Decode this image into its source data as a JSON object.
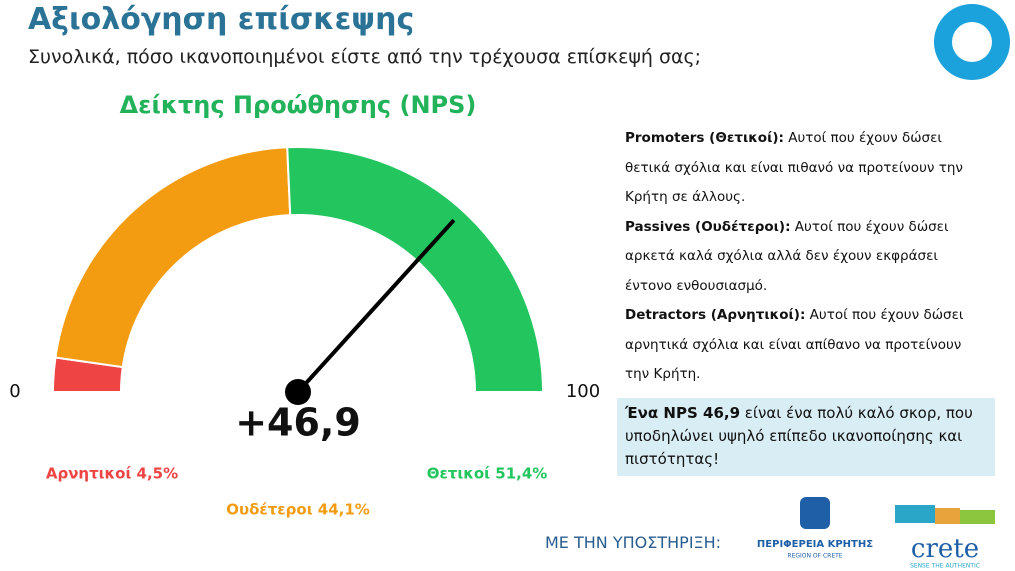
{
  "header": {
    "title": "Αξιολόγηση επίσκεψης",
    "subtitle": "Συνολικά, πόσο ικανοποιημένοι είστε από την τρέχουσα επίσκεψή σας;"
  },
  "chart_data": {
    "type": "gauge",
    "title": "Δείκτης Προώθησης (NPS)",
    "values": [
      4.5,
      44.1,
      51.4
    ],
    "value_labels": [
      "Αρνητικοί 4,5%",
      "Ουδέτεροι 44,1%",
      "Θετικοί 51,4%"
    ],
    "colors": [
      "#ef4444",
      "#f39c12",
      "#22c55e"
    ],
    "xlim": [
      0,
      100
    ],
    "xticks": [
      0,
      100
    ],
    "needle": {
      "value": 46.9,
      "label": "+46,9",
      "range": [
        -100,
        100
      ]
    }
  },
  "definitions": [
    {
      "term": "Promoters (Θετικοί):",
      "text": "Αυτοί που έχουν δώσει θετικά σχόλια και είναι πιθανό να προτείνουν την Κρήτη σε άλλους."
    },
    {
      "term": "Passives (Ουδέτεροι):",
      "text": "Αυτοί που έχουν δώσει αρκετά καλά σχόλια αλλά δεν έχουν εκφράσει έντονο ενθουσιασμό."
    },
    {
      "term": "Detractors (Αρνητικοί):",
      "text": "Αυτοί που έχουν δώσει αρνητικά σχόλια και είναι απίθανο να προτείνουν την Κρήτη."
    }
  ],
  "callout": {
    "bold": "Ένα NPS 46,9",
    "text": "είναι ένα πολύ καλό σκορ, που υποδηλώνει υψηλό επίπεδο ικανοποίησης και πιστότητας!"
  },
  "footer": {
    "support": "ΜΕ ΤΗΝ ΥΠΟΣΤΗΡΙΞΗ:",
    "region_logo": [
      "ΠΕΡΙΦΕΡΕΙΑ ΚΡΗΤΗΣ",
      "REGION OF CRETE"
    ],
    "crete_logo": [
      "crete",
      "SENSE THE AUTHENTIC"
    ]
  }
}
